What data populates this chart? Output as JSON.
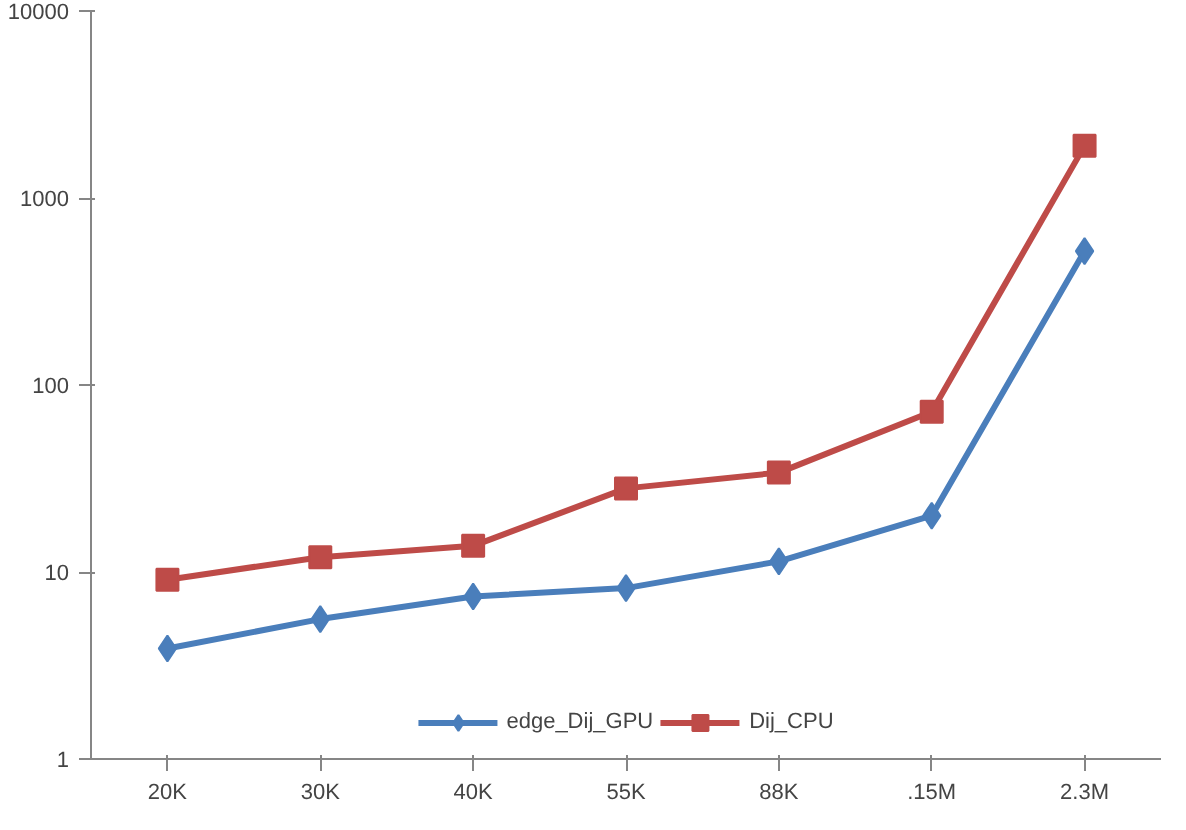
{
  "chart_data": {
    "type": "line",
    "categories": [
      "20K",
      "30K",
      "40K",
      "55K",
      "88K",
      ".15M",
      "2.3M"
    ],
    "series": [
      {
        "name": "edge_Dij_GPU",
        "color": "#4a7ebb",
        "marker": "diamond",
        "values": [
          3.9,
          5.6,
          7.4,
          8.2,
          11.4,
          20,
          520
        ]
      },
      {
        "name": "Dij_CPU",
        "color": "#be4b48",
        "marker": "square",
        "values": [
          9.1,
          12,
          13.8,
          28,
          34,
          72,
          1900
        ]
      }
    ],
    "log": "y",
    "ylim": [
      1,
      10000
    ],
    "yticks": [
      1,
      10,
      100,
      1000,
      10000
    ],
    "grid": false,
    "legend": "bottom"
  }
}
